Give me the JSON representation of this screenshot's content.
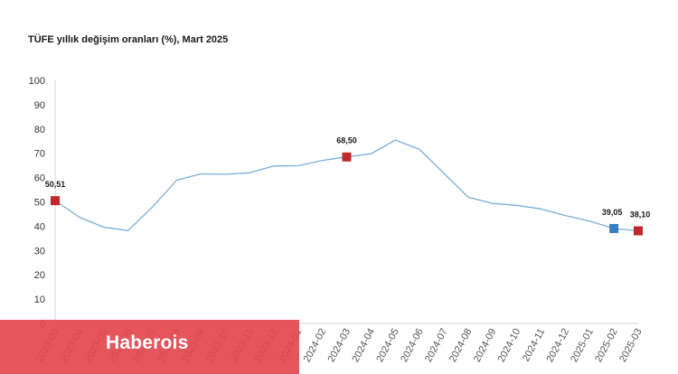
{
  "chart_data": {
    "type": "line",
    "title": "TÜFE yıllık değişim oranları (%), Mart 2025",
    "xlabel": "",
    "ylabel": "",
    "ylim": [
      0,
      100
    ],
    "yticks": [
      0,
      10,
      20,
      30,
      40,
      50,
      60,
      70,
      80,
      90,
      100
    ],
    "grid": false,
    "categories": [
      "2023-03",
      "2023-04",
      "2023-05",
      "2023-06",
      "2023-07",
      "2023-08",
      "2023-09",
      "2023-10",
      "2023-11",
      "2023-12",
      "2024-01",
      "2024-02",
      "2024-03",
      "2024-04",
      "2024-05",
      "2024-06",
      "2024-07",
      "2024-08",
      "2024-09",
      "2024-10",
      "2024-11",
      "2024-12",
      "2025-01",
      "2025-02",
      "2025-03"
    ],
    "series": [
      {
        "color": "#7aaed6",
        "values": [
          50.51,
          43.68,
          39.59,
          38.21,
          47.83,
          58.94,
          61.53,
          61.36,
          61.98,
          64.77,
          64.86,
          67.07,
          68.5,
          69.8,
          75.45,
          71.6,
          61.78,
          51.97,
          49.38,
          48.58,
          47.09,
          44.38,
          42.12,
          39.05,
          38.1
        ]
      }
    ],
    "annotations": [
      {
        "category": "2023-03",
        "label": "50,51",
        "marker_color": "#c0282d"
      },
      {
        "category": "2024-03",
        "label": "68,50",
        "marker_color": "#c0282d"
      },
      {
        "category": "2025-02",
        "label": "39,05",
        "marker_color": "#3a7fc1"
      },
      {
        "category": "2025-03",
        "label": "38,10",
        "marker_color": "#c0282d"
      }
    ]
  },
  "watermark": {
    "text": "Haberois"
  }
}
